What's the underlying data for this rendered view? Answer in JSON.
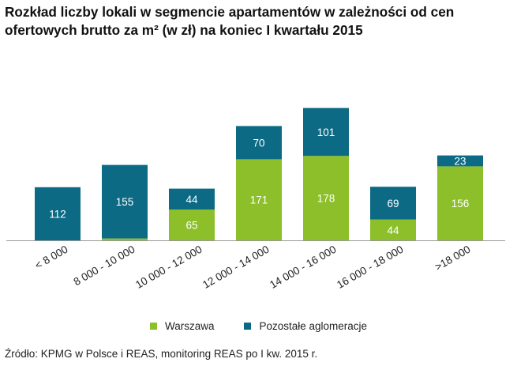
{
  "title_line1": "Rozkład liczby lokali w segmencie apartamentów w zależności od cen",
  "title_line2": "ofertowych brutto za m² (w zł) na koniec I kwartału 2015",
  "source": "Źródło: KPMG w Polsce i REAS, monitoring REAS po I kw. 2015 r.",
  "colors": {
    "warszawa": "#8cbf2a",
    "pozostale": "#0d6a84",
    "axis": "#999999"
  },
  "chart_data": {
    "type": "bar",
    "stacked": true,
    "title": "Rozkład liczby lokali w segmencie apartamentów w zależności od cen ofertowych brutto za m² (w zł) na koniec I kwartału 2015",
    "categories": [
      "< 8 000",
      "8 000 - 10 000",
      "10 000 - 12 000",
      "12 000 - 14 000",
      "14 000 - 16 000",
      "16 000 - 18 000",
      ">18 000"
    ],
    "series": [
      {
        "name": "Warszawa",
        "values": [
          0,
          4,
          65,
          171,
          178,
          44,
          156
        ]
      },
      {
        "name": "Pozostałe aglomeracje",
        "values": [
          112,
          155,
          44,
          70,
          101,
          69,
          23
        ]
      }
    ],
    "xlabel": "",
    "ylabel": "",
    "ylim": [
      0,
      280
    ],
    "grid": false,
    "legend": "bottom"
  }
}
